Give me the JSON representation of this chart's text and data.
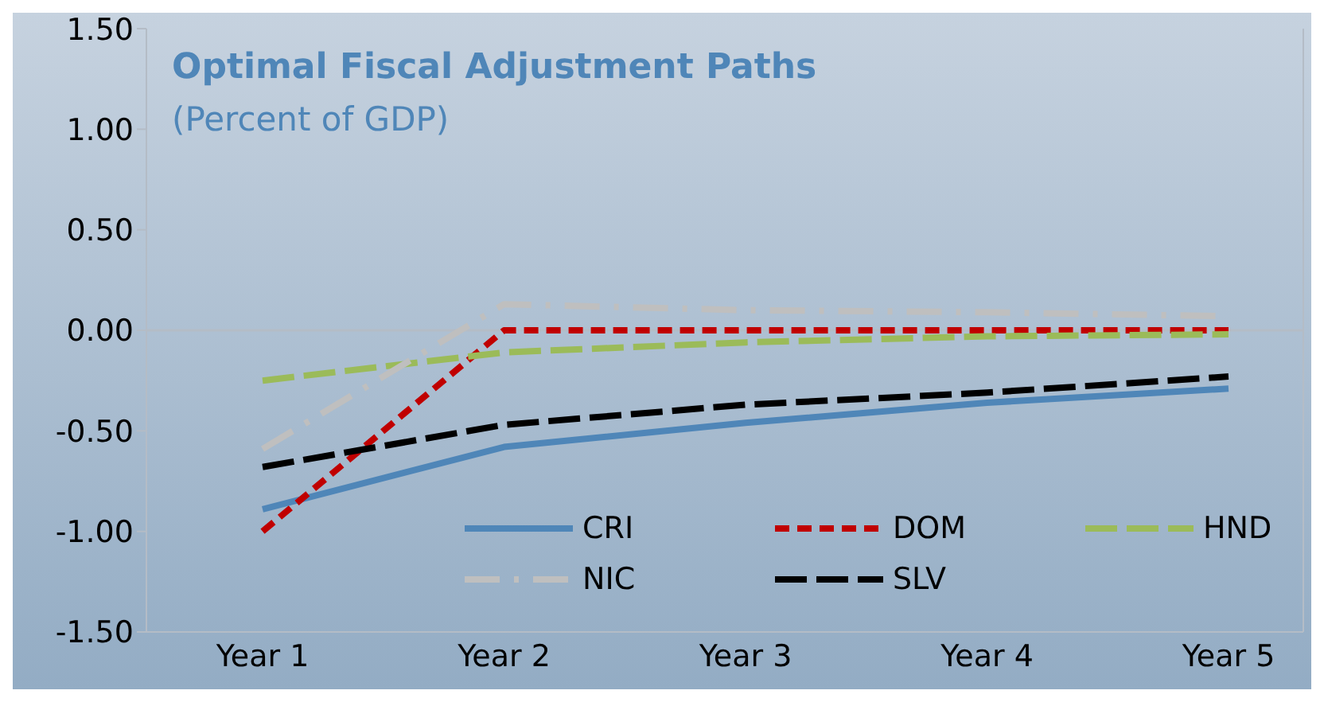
{
  "chart_data": {
    "type": "line",
    "title": "Optimal Fiscal Adjustment Paths",
    "subtitle": "(Percent of GDP)",
    "categories": [
      "Year 1",
      "Year 2",
      "Year 3",
      "Year 4",
      "Year 5"
    ],
    "ylim": [
      -1.5,
      1.5
    ],
    "yticks": [
      {
        "value": -1.5,
        "label": "-1.50"
      },
      {
        "value": -1,
        "label": "-1.00"
      },
      {
        "value": -0.5,
        "label": "-0.50"
      },
      {
        "value": 0,
        "label": "0.00"
      },
      {
        "value": 0.5,
        "label": "0.50"
      },
      {
        "value": 1,
        "label": "1.00"
      },
      {
        "value": 1.5,
        "label": "1.50"
      }
    ],
    "grid": false,
    "legend": "bottom",
    "marker": "none",
    "ref_lines": [
      {
        "axis": "y",
        "value": 0,
        "color": "#b4bcc6"
      }
    ],
    "series": [
      {
        "name": "CRI",
        "color": "#4f86b8",
        "line_style": "solid",
        "values": [
          -0.89,
          -0.58,
          -0.46,
          -0.36,
          -0.29
        ]
      },
      {
        "name": "DOM",
        "color": "#c00000",
        "line_style": "dashed",
        "values": [
          -1.0,
          0,
          0,
          0,
          0
        ]
      },
      {
        "name": "HND",
        "color": "#9bbb59",
        "line_style": "longdash",
        "values": [
          -0.25,
          -0.11,
          -0.06,
          -0.03,
          -0.02
        ]
      },
      {
        "name": "NIC",
        "color": "#bfbfbf",
        "line_style": "dashdot",
        "values": [
          -0.59,
          0.13,
          0.1,
          0.09,
          0.07
        ]
      },
      {
        "name": "SLV",
        "color": "#000000",
        "line_style": "longdash",
        "values": [
          -0.68,
          -0.47,
          -0.37,
          -0.31,
          -0.23
        ]
      }
    ]
  }
}
